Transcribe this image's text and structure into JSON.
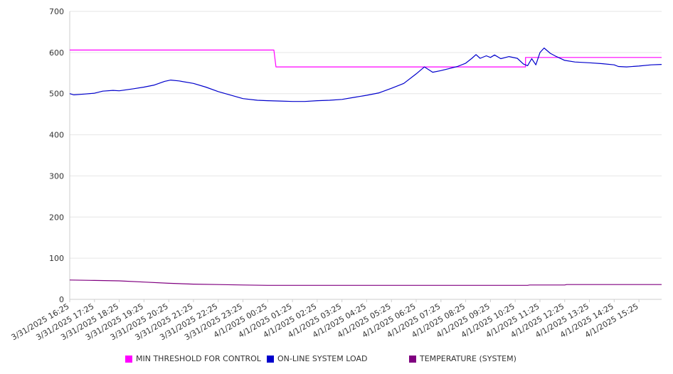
{
  "chart_data": {
    "type": "line",
    "title": "",
    "xlabel": "",
    "ylabel": "",
    "ylim": [
      0,
      700
    ],
    "yticks": [
      0,
      100,
      200,
      300,
      400,
      500,
      600,
      700
    ],
    "grid": true,
    "legend_position": "bottom",
    "x_tick_labels": [
      "3/31/2025 16:25",
      "3/31/2025 17:25",
      "3/31/2025 18:25",
      "3/31/2025 19:25",
      "3/31/2025 20:25",
      "3/31/2025 21:25",
      "3/31/2025 22:25",
      "3/31/2025 23:25",
      "4/1/2025 00:25",
      "4/1/2025 01:25",
      "4/1/2025 02:25",
      "4/1/2025 03:25",
      "4/1/2025 04:25",
      "4/1/2025 05:25",
      "4/1/2025 06:25",
      "4/1/2025 07:25",
      "4/1/2025 08:25",
      "4/1/2025 09:25",
      "4/1/2025 10:25",
      "4/1/2025 11:25",
      "4/1/2025 12:25",
      "4/1/2025 13:25",
      "4/1/2025 14:25",
      "4/1/2025 15:25"
    ],
    "series": [
      {
        "name": "MIN THRESHOLD FOR CONTROL",
        "color": "#ff00ff",
        "step": true,
        "points": [
          [
            "3/31/2025 16:25",
            606
          ],
          [
            "4/1/2025 00:40",
            606
          ],
          [
            "4/1/2025 00:45",
            565
          ],
          [
            "4/1/2025 10:50",
            565
          ],
          [
            "4/1/2025 10:50",
            588
          ],
          [
            "4/1/2025 16:20",
            588
          ]
        ]
      },
      {
        "name": "ON-LINE SYSTEM LOAD",
        "color": "#0000cc",
        "points": [
          [
            "3/31/2025 16:25",
            500
          ],
          [
            "3/31/2025 16:35",
            497
          ],
          [
            "3/31/2025 17:00",
            499
          ],
          [
            "3/31/2025 17:25",
            501
          ],
          [
            "3/31/2025 17:45",
            506
          ],
          [
            "3/31/2025 18:10",
            508
          ],
          [
            "3/31/2025 18:25",
            507
          ],
          [
            "3/31/2025 19:00",
            512
          ],
          [
            "3/31/2025 19:25",
            516
          ],
          [
            "3/31/2025 19:50",
            521
          ],
          [
            "3/31/2025 20:15",
            530
          ],
          [
            "3/31/2025 20:30",
            533
          ],
          [
            "3/31/2025 20:50",
            531
          ],
          [
            "3/31/2025 21:25",
            525
          ],
          [
            "3/31/2025 21:55",
            516
          ],
          [
            "3/31/2025 22:25",
            505
          ],
          [
            "3/31/2025 23:00",
            495
          ],
          [
            "3/31/2025 23:25",
            488
          ],
          [
            "4/1/2025 00:00",
            484
          ],
          [
            "4/1/2025 00:25",
            483
          ],
          [
            "4/1/2025 00:55",
            482
          ],
          [
            "4/1/2025 01:25",
            481
          ],
          [
            "4/1/2025 01:55",
            481
          ],
          [
            "4/1/2025 02:25",
            483
          ],
          [
            "4/1/2025 02:55",
            484
          ],
          [
            "4/1/2025 03:25",
            486
          ],
          [
            "4/1/2025 03:55",
            491
          ],
          [
            "4/1/2025 04:25",
            496
          ],
          [
            "4/1/2025 04:55",
            502
          ],
          [
            "4/1/2025 05:25",
            513
          ],
          [
            "4/1/2025 05:55",
            525
          ],
          [
            "4/1/2025 06:25",
            548
          ],
          [
            "4/1/2025 06:45",
            565
          ],
          [
            "4/1/2025 07:05",
            552
          ],
          [
            "4/1/2025 07:25",
            556
          ],
          [
            "4/1/2025 07:45",
            561
          ],
          [
            "4/1/2025 08:05",
            566
          ],
          [
            "4/1/2025 08:25",
            574
          ],
          [
            "4/1/2025 08:40",
            586
          ],
          [
            "4/1/2025 08:50",
            595
          ],
          [
            "4/1/2025 09:00",
            586
          ],
          [
            "4/1/2025 09:15",
            592
          ],
          [
            "4/1/2025 09:25",
            588
          ],
          [
            "4/1/2025 09:35",
            594
          ],
          [
            "4/1/2025 09:50",
            585
          ],
          [
            "4/1/2025 10:10",
            590
          ],
          [
            "4/1/2025 10:30",
            586
          ],
          [
            "4/1/2025 10:45",
            572
          ],
          [
            "4/1/2025 10:55",
            568
          ],
          [
            "4/1/2025 11:05",
            585
          ],
          [
            "4/1/2025 11:15",
            570
          ],
          [
            "4/1/2025 11:25",
            600
          ],
          [
            "4/1/2025 11:35",
            611
          ],
          [
            "4/1/2025 11:50",
            598
          ],
          [
            "4/1/2025 12:05",
            590
          ],
          [
            "4/1/2025 12:25",
            581
          ],
          [
            "4/1/2025 12:50",
            577
          ],
          [
            "4/1/2025 13:25",
            575
          ],
          [
            "4/1/2025 13:55",
            573
          ],
          [
            "4/1/2025 14:25",
            570
          ],
          [
            "4/1/2025 14:35",
            566
          ],
          [
            "4/1/2025 14:55",
            565
          ],
          [
            "4/1/2025 15:25",
            567
          ],
          [
            "4/1/2025 15:55",
            570
          ],
          [
            "4/1/2025 16:20",
            571
          ]
        ]
      },
      {
        "name": "TEMPERATURE (SYSTEM)",
        "color": "#800080",
        "points": [
          [
            "3/31/2025 16:25",
            47
          ],
          [
            "3/31/2025 17:25",
            46
          ],
          [
            "3/31/2025 18:25",
            45
          ],
          [
            "3/31/2025 19:25",
            42
          ],
          [
            "3/31/2025 20:25",
            39
          ],
          [
            "3/31/2025 21:25",
            37
          ],
          [
            "3/31/2025 22:25",
            36
          ],
          [
            "3/31/2025 23:25",
            35
          ],
          [
            "4/1/2025 00:25",
            34
          ],
          [
            "4/1/2025 04:25",
            34
          ],
          [
            "4/1/2025 08:25",
            34
          ],
          [
            "4/1/2025 10:55",
            34
          ],
          [
            "4/1/2025 11:00",
            35
          ],
          [
            "4/1/2025 12:25",
            35
          ],
          [
            "4/1/2025 12:30",
            36
          ],
          [
            "4/1/2025 14:25",
            36
          ],
          [
            "4/1/2025 16:20",
            36
          ]
        ]
      }
    ]
  }
}
